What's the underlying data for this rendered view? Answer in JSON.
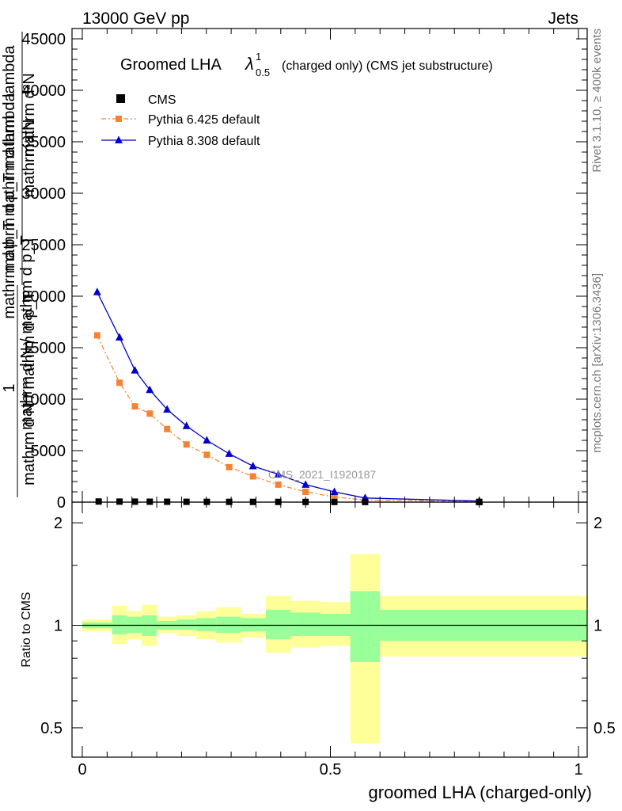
{
  "header": {
    "left": "13000 GeV pp",
    "right": "Jets"
  },
  "side": {
    "top": "Rivet 3.1.10, ≥ 400k events",
    "bottom": "mcplots.cern.ch [arXiv:1306.3436]"
  },
  "watermark": "CMS_2021_I1920187",
  "colors": {
    "cms": "#000000",
    "pythia6": "#f58232",
    "pythia8": "#0000cc",
    "band_outer": "#ffff99",
    "band_inner": "#99ff99"
  },
  "chart_data": [
    {
      "type": "line",
      "title": "Groomed LHA",
      "title_symbol": "λ",
      "title_sup": "1",
      "title_sub": "0.5",
      "title_suffix": "(charged only) (CMS jet substructure)",
      "ylabel_lines": [
        "mathrm d²N",
        "mathrm d p_T mathrm d lambda",
        "1",
        "mathrm d N / mathrm d p_T"
      ],
      "ylabel_lines_extra": [
        "mathrm dN",
        "mathrm d p_T mathrm d lambda",
        "mathrm d N / mathrm d p_T"
      ],
      "xlim": [
        0,
        1
      ],
      "ylim": [
        0,
        46000
      ],
      "yticks": [
        0,
        5000,
        10000,
        15000,
        20000,
        25000,
        30000,
        35000,
        40000,
        45000
      ],
      "ytick_labels": [
        "0",
        "5000",
        "10000",
        "15000",
        "20000",
        "25000",
        "30000",
        "35000",
        "40000",
        "45000"
      ],
      "legend_position": "top-left",
      "series": [
        {
          "name": "CMS",
          "marker": "square",
          "x": [
            0.033,
            0.075,
            0.106,
            0.136,
            0.171,
            0.21,
            0.251,
            0.296,
            0.344,
            0.395,
            0.45,
            0.508,
            0.57,
            0.8
          ],
          "y": [
            60,
            50,
            45,
            40,
            35,
            30,
            28,
            25,
            22,
            20,
            18,
            15,
            12,
            5
          ]
        },
        {
          "name": "Pythia 6.425 default",
          "marker": "square",
          "x": [
            0.03,
            0.075,
            0.106,
            0.136,
            0.171,
            0.21,
            0.251,
            0.296,
            0.344,
            0.395,
            0.45,
            0.508,
            0.57,
            0.8
          ],
          "y": [
            16200,
            11600,
            9300,
            8600,
            7100,
            5600,
            4600,
            3400,
            2500,
            1700,
            1000,
            500,
            200,
            50
          ]
        },
        {
          "name": "Pythia 8.308 default",
          "marker": "triangle",
          "x": [
            0.03,
            0.075,
            0.106,
            0.136,
            0.171,
            0.21,
            0.251,
            0.296,
            0.344,
            0.395,
            0.45,
            0.508,
            0.57,
            0.8
          ],
          "y": [
            20400,
            16000,
            12800,
            10900,
            9000,
            7400,
            6000,
            4700,
            3500,
            2700,
            1700,
            1000,
            400,
            100
          ]
        }
      ]
    },
    {
      "type": "area",
      "ylabel": "Ratio to CMS",
      "xlabel": "groomed LHA (charged-only)",
      "xlim": [
        0,
        1
      ],
      "ylim": [
        0.41,
        2.3
      ],
      "log_y": true,
      "xticks": [
        0,
        0.5,
        1
      ],
      "xtick_labels": [
        "0",
        "0.5",
        "1"
      ],
      "yticks": [
        0.5,
        1,
        2
      ],
      "ytick_labels": [
        "0.5",
        "1",
        "2"
      ],
      "bins": [
        {
          "x_lo": 0.0,
          "x_hi": 0.06,
          "inner": [
            0.98,
            1.02
          ],
          "outer": [
            0.96,
            1.04
          ]
        },
        {
          "x_lo": 0.06,
          "x_hi": 0.09,
          "inner": [
            0.94,
            1.07
          ],
          "outer": [
            0.88,
            1.14
          ]
        },
        {
          "x_lo": 0.09,
          "x_hi": 0.12,
          "inner": [
            0.95,
            1.06
          ],
          "outer": [
            0.91,
            1.1
          ]
        },
        {
          "x_lo": 0.12,
          "x_hi": 0.15,
          "inner": [
            0.93,
            1.07
          ],
          "outer": [
            0.87,
            1.15
          ]
        },
        {
          "x_lo": 0.15,
          "x_hi": 0.19,
          "inner": [
            0.97,
            1.03
          ],
          "outer": [
            0.95,
            1.06
          ]
        },
        {
          "x_lo": 0.19,
          "x_hi": 0.23,
          "inner": [
            0.97,
            1.04
          ],
          "outer": [
            0.93,
            1.07
          ]
        },
        {
          "x_lo": 0.23,
          "x_hi": 0.27,
          "inner": [
            0.96,
            1.05
          ],
          "outer": [
            0.91,
            1.1
          ]
        },
        {
          "x_lo": 0.27,
          "x_hi": 0.32,
          "inner": [
            0.95,
            1.06
          ],
          "outer": [
            0.89,
            1.13
          ]
        },
        {
          "x_lo": 0.32,
          "x_hi": 0.37,
          "inner": [
            0.96,
            1.05
          ],
          "outer": [
            0.92,
            1.08
          ]
        },
        {
          "x_lo": 0.37,
          "x_hi": 0.42,
          "inner": [
            0.91,
            1.11
          ],
          "outer": [
            0.83,
            1.22
          ]
        },
        {
          "x_lo": 0.42,
          "x_hi": 0.48,
          "inner": [
            0.93,
            1.09
          ],
          "outer": [
            0.86,
            1.18
          ]
        },
        {
          "x_lo": 0.48,
          "x_hi": 0.54,
          "inner": [
            0.93,
            1.08
          ],
          "outer": [
            0.87,
            1.17
          ]
        },
        {
          "x_lo": 0.54,
          "x_hi": 0.6,
          "inner": [
            0.78,
            1.26
          ],
          "outer": [
            0.45,
            1.62
          ]
        },
        {
          "x_lo": 0.6,
          "x_hi": 1.0,
          "inner": [
            0.9,
            1.11
          ],
          "outer": [
            0.81,
            1.22
          ]
        }
      ]
    }
  ]
}
